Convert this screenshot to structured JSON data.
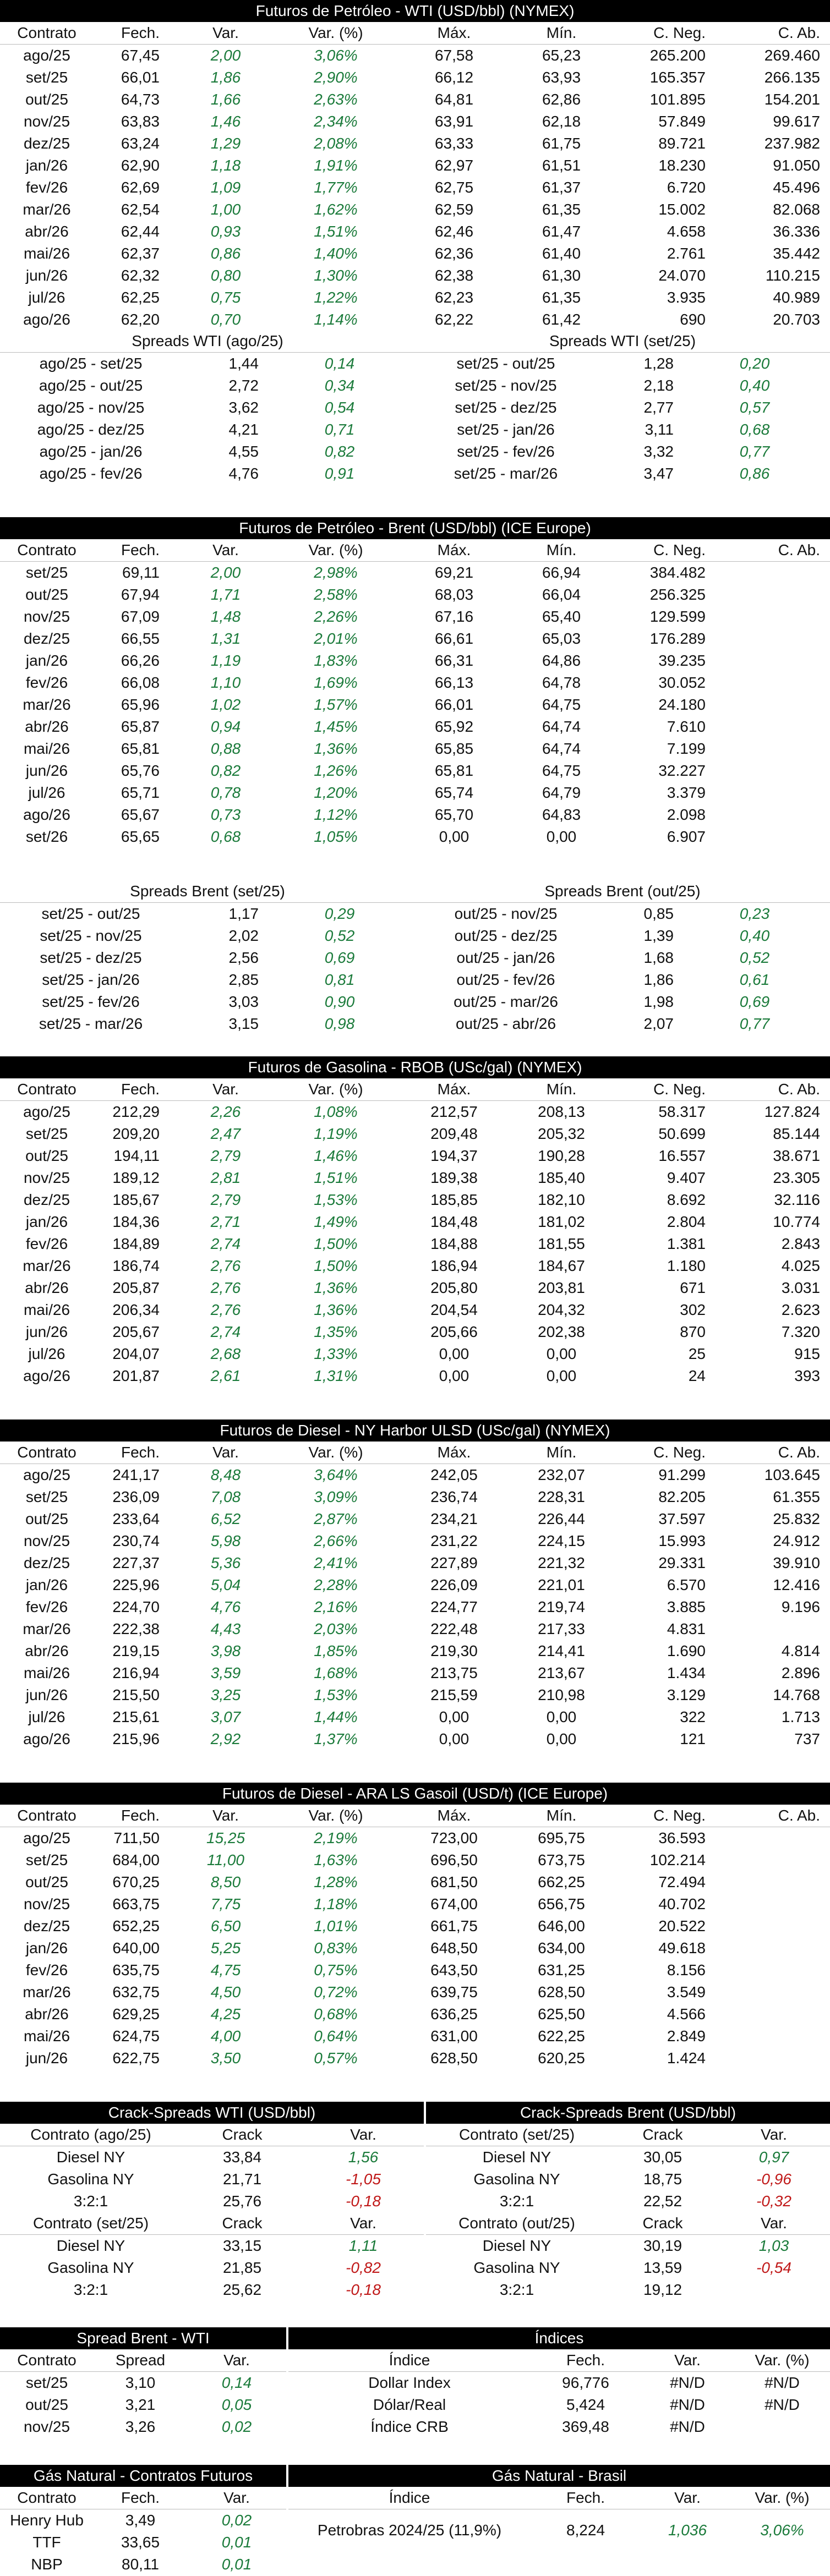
{
  "colors": {
    "positive": "#1a7a3a",
    "negative": "#c01818",
    "header_bg": "#000000"
  },
  "wti": {
    "title": "Futuros de Petróleo - WTI (USD/bbl) (NYMEX)",
    "headers": [
      "Contrato",
      "Fech.",
      "Var.",
      "Var. (%)",
      "Máx.",
      "Mín.",
      "C. Neg.",
      "C. Ab."
    ],
    "rows": [
      [
        "ago/25",
        "67,45",
        "2,00",
        "3,06%",
        "67,58",
        "65,23",
        "265.200",
        "269.460"
      ],
      [
        "set/25",
        "66,01",
        "1,86",
        "2,90%",
        "66,12",
        "63,93",
        "165.357",
        "266.135"
      ],
      [
        "out/25",
        "64,73",
        "1,66",
        "2,63%",
        "64,81",
        "62,86",
        "101.895",
        "154.201"
      ],
      [
        "nov/25",
        "63,83",
        "1,46",
        "2,34%",
        "63,91",
        "62,18",
        "57.849",
        "99.617"
      ],
      [
        "dez/25",
        "63,24",
        "1,29",
        "2,08%",
        "63,33",
        "61,75",
        "89.721",
        "237.982"
      ],
      [
        "jan/26",
        "62,90",
        "1,18",
        "1,91%",
        "62,97",
        "61,51",
        "18.230",
        "91.050"
      ],
      [
        "fev/26",
        "62,69",
        "1,09",
        "1,77%",
        "62,75",
        "61,37",
        "6.720",
        "45.496"
      ],
      [
        "mar/26",
        "62,54",
        "1,00",
        "1,62%",
        "62,59",
        "61,35",
        "15.002",
        "82.068"
      ],
      [
        "abr/26",
        "62,44",
        "0,93",
        "1,51%",
        "62,46",
        "61,47",
        "4.658",
        "36.336"
      ],
      [
        "mai/26",
        "62,37",
        "0,86",
        "1,40%",
        "62,36",
        "61,40",
        "2.761",
        "35.442"
      ],
      [
        "jun/26",
        "62,32",
        "0,80",
        "1,30%",
        "62,38",
        "61,30",
        "24.070",
        "110.215"
      ],
      [
        "jul/26",
        "62,25",
        "0,75",
        "1,22%",
        "62,23",
        "61,35",
        "3.935",
        "40.989"
      ],
      [
        "ago/26",
        "62,20",
        "0,70",
        "1,14%",
        "62,22",
        "61,42",
        "690",
        "20.703"
      ]
    ],
    "spreads_left_title": "Spreads WTI (ago/25)",
    "spreads_left": [
      [
        "ago/25 - set/25",
        "1,44",
        "0,14"
      ],
      [
        "ago/25 - out/25",
        "2,72",
        "0,34"
      ],
      [
        "ago/25 - nov/25",
        "3,62",
        "0,54"
      ],
      [
        "ago/25 - dez/25",
        "4,21",
        "0,71"
      ],
      [
        "ago/25 - jan/26",
        "4,55",
        "0,82"
      ],
      [
        "ago/25 - fev/26",
        "4,76",
        "0,91"
      ]
    ],
    "spreads_right_title": "Spreads WTI (set/25)",
    "spreads_right": [
      [
        "set/25 - out/25",
        "1,28",
        "0,20"
      ],
      [
        "set/25 - nov/25",
        "2,18",
        "0,40"
      ],
      [
        "set/25 - dez/25",
        "2,77",
        "0,57"
      ],
      [
        "set/25 - jan/26",
        "3,11",
        "0,68"
      ],
      [
        "set/25 - fev/26",
        "3,32",
        "0,77"
      ],
      [
        "set/25 - mar/26",
        "3,47",
        "0,86"
      ]
    ]
  },
  "brent": {
    "title": "Futuros de Petróleo - Brent (USD/bbl) (ICE Europe)",
    "headers": [
      "Contrato",
      "Fech.",
      "Var.",
      "Var. (%)",
      "Máx.",
      "Mín.",
      "C. Neg.",
      "C. Ab."
    ],
    "rows": [
      [
        "set/25",
        "69,11",
        "2,00",
        "2,98%",
        "69,21",
        "66,94",
        "384.482",
        ""
      ],
      [
        "out/25",
        "67,94",
        "1,71",
        "2,58%",
        "68,03",
        "66,04",
        "256.325",
        ""
      ],
      [
        "nov/25",
        "67,09",
        "1,48",
        "2,26%",
        "67,16",
        "65,40",
        "129.599",
        ""
      ],
      [
        "dez/25",
        "66,55",
        "1,31",
        "2,01%",
        "66,61",
        "65,03",
        "176.289",
        ""
      ],
      [
        "jan/26",
        "66,26",
        "1,19",
        "1,83%",
        "66,31",
        "64,86",
        "39.235",
        ""
      ],
      [
        "fev/26",
        "66,08",
        "1,10",
        "1,69%",
        "66,13",
        "64,78",
        "30.052",
        ""
      ],
      [
        "mar/26",
        "65,96",
        "1,02",
        "1,57%",
        "66,01",
        "64,75",
        "24.180",
        ""
      ],
      [
        "abr/26",
        "65,87",
        "0,94",
        "1,45%",
        "65,92",
        "64,74",
        "7.610",
        ""
      ],
      [
        "mai/26",
        "65,81",
        "0,88",
        "1,36%",
        "65,85",
        "64,74",
        "7.199",
        ""
      ],
      [
        "jun/26",
        "65,76",
        "0,82",
        "1,26%",
        "65,81",
        "64,75",
        "32.227",
        ""
      ],
      [
        "jul/26",
        "65,71",
        "0,78",
        "1,20%",
        "65,74",
        "64,79",
        "3.379",
        ""
      ],
      [
        "ago/26",
        "65,67",
        "0,73",
        "1,12%",
        "65,70",
        "64,83",
        "2.098",
        ""
      ],
      [
        "set/26",
        "65,65",
        "0,68",
        "1,05%",
        "0,00",
        "0,00",
        "6.907",
        ""
      ]
    ],
    "spreads_left_title": "Spreads Brent (set/25)",
    "spreads_left": [
      [
        "set/25 - out/25",
        "1,17",
        "0,29"
      ],
      [
        "set/25 - nov/25",
        "2,02",
        "0,52"
      ],
      [
        "set/25 - dez/25",
        "2,56",
        "0,69"
      ],
      [
        "set/25 - jan/26",
        "2,85",
        "0,81"
      ],
      [
        "set/25 - fev/26",
        "3,03",
        "0,90"
      ],
      [
        "set/25 - mar/26",
        "3,15",
        "0,98"
      ]
    ],
    "spreads_right_title": "Spreads Brent (out/25)",
    "spreads_right": [
      [
        "out/25 - nov/25",
        "0,85",
        "0,23"
      ],
      [
        "out/25 - dez/25",
        "1,39",
        "0,40"
      ],
      [
        "out/25 - jan/26",
        "1,68",
        "0,52"
      ],
      [
        "out/25 - fev/26",
        "1,86",
        "0,61"
      ],
      [
        "out/25 - mar/26",
        "1,98",
        "0,69"
      ],
      [
        "out/25 - abr/26",
        "2,07",
        "0,77"
      ]
    ]
  },
  "rbob": {
    "title": "Futuros de Gasolina - RBOB (USc/gal) (NYMEX)",
    "headers": [
      "Contrato",
      "Fech.",
      "Var.",
      "Var. (%)",
      "Máx.",
      "Mín.",
      "C. Neg.",
      "C. Ab."
    ],
    "rows": [
      [
        "ago/25",
        "212,29",
        "2,26",
        "1,08%",
        "212,57",
        "208,13",
        "58.317",
        "127.824"
      ],
      [
        "set/25",
        "209,20",
        "2,47",
        "1,19%",
        "209,48",
        "205,32",
        "50.699",
        "85.144"
      ],
      [
        "out/25",
        "194,11",
        "2,79",
        "1,46%",
        "194,37",
        "190,28",
        "16.557",
        "38.671"
      ],
      [
        "nov/25",
        "189,12",
        "2,81",
        "1,51%",
        "189,38",
        "185,40",
        "9.407",
        "23.305"
      ],
      [
        "dez/25",
        "185,67",
        "2,79",
        "1,53%",
        "185,85",
        "182,10",
        "8.692",
        "32.116"
      ],
      [
        "jan/26",
        "184,36",
        "2,71",
        "1,49%",
        "184,48",
        "181,02",
        "2.804",
        "10.774"
      ],
      [
        "fev/26",
        "184,89",
        "2,74",
        "1,50%",
        "184,88",
        "181,55",
        "1.381",
        "2.843"
      ],
      [
        "mar/26",
        "186,74",
        "2,76",
        "1,50%",
        "186,94",
        "184,67",
        "1.180",
        "4.025"
      ],
      [
        "abr/26",
        "205,87",
        "2,76",
        "1,36%",
        "205,80",
        "203,81",
        "671",
        "3.031"
      ],
      [
        "mai/26",
        "206,34",
        "2,76",
        "1,36%",
        "204,54",
        "204,32",
        "302",
        "2.623"
      ],
      [
        "jun/26",
        "205,67",
        "2,74",
        "1,35%",
        "205,66",
        "202,38",
        "870",
        "7.320"
      ],
      [
        "jul/26",
        "204,07",
        "2,68",
        "1,33%",
        "0,00",
        "0,00",
        "25",
        "915"
      ],
      [
        "ago/26",
        "201,87",
        "2,61",
        "1,31%",
        "0,00",
        "0,00",
        "24",
        "393"
      ]
    ]
  },
  "ulsd": {
    "title": "Futuros de Diesel - NY Harbor ULSD (USc/gal) (NYMEX)",
    "headers": [
      "Contrato",
      "Fech.",
      "Var.",
      "Var. (%)",
      "Máx.",
      "Mín.",
      "C. Neg.",
      "C. Ab."
    ],
    "rows": [
      [
        "ago/25",
        "241,17",
        "8,48",
        "3,64%",
        "242,05",
        "232,07",
        "91.299",
        "103.645"
      ],
      [
        "set/25",
        "236,09",
        "7,08",
        "3,09%",
        "236,74",
        "228,31",
        "82.205",
        "61.355"
      ],
      [
        "out/25",
        "233,64",
        "6,52",
        "2,87%",
        "234,21",
        "226,44",
        "37.597",
        "25.832"
      ],
      [
        "nov/25",
        "230,74",
        "5,98",
        "2,66%",
        "231,22",
        "224,15",
        "15.993",
        "24.912"
      ],
      [
        "dez/25",
        "227,37",
        "5,36",
        "2,41%",
        "227,89",
        "221,32",
        "29.331",
        "39.910"
      ],
      [
        "jan/26",
        "225,96",
        "5,04",
        "2,28%",
        "226,09",
        "221,01",
        "6.570",
        "12.416"
      ],
      [
        "fev/26",
        "224,70",
        "4,76",
        "2,16%",
        "224,77",
        "219,74",
        "3.885",
        "9.196"
      ],
      [
        "mar/26",
        "222,38",
        "4,43",
        "2,03%",
        "222,48",
        "217,33",
        "4.831",
        ""
      ],
      [
        "abr/26",
        "219,15",
        "3,98",
        "1,85%",
        "219,30",
        "214,41",
        "1.690",
        "4.814"
      ],
      [
        "mai/26",
        "216,94",
        "3,59",
        "1,68%",
        "213,75",
        "213,67",
        "1.434",
        "2.896"
      ],
      [
        "jun/26",
        "215,50",
        "3,25",
        "1,53%",
        "215,59",
        "210,98",
        "3.129",
        "14.768"
      ],
      [
        "jul/26",
        "215,61",
        "3,07",
        "1,44%",
        "0,00",
        "0,00",
        "322",
        "1.713"
      ],
      [
        "ago/26",
        "215,96",
        "2,92",
        "1,37%",
        "0,00",
        "0,00",
        "121",
        "737"
      ]
    ]
  },
  "gasoil": {
    "title": "Futuros de Diesel - ARA LS Gasoil (USD/t) (ICE Europe)",
    "headers": [
      "Contrato",
      "Fech.",
      "Var.",
      "Var. (%)",
      "Máx.",
      "Mín.",
      "C. Neg.",
      "C. Ab."
    ],
    "rows": [
      [
        "ago/25",
        "711,50",
        "15,25",
        "2,19%",
        "723,00",
        "695,75",
        "36.593",
        ""
      ],
      [
        "set/25",
        "684,00",
        "11,00",
        "1,63%",
        "696,50",
        "673,75",
        "102.214",
        ""
      ],
      [
        "out/25",
        "670,25",
        "8,50",
        "1,28%",
        "681,50",
        "662,25",
        "72.494",
        ""
      ],
      [
        "nov/25",
        "663,75",
        "7,75",
        "1,18%",
        "674,00",
        "656,75",
        "40.702",
        ""
      ],
      [
        "dez/25",
        "652,25",
        "6,50",
        "1,01%",
        "661,75",
        "646,00",
        "20.522",
        ""
      ],
      [
        "jan/26",
        "640,00",
        "5,25",
        "0,83%",
        "648,50",
        "634,00",
        "49.618",
        ""
      ],
      [
        "fev/26",
        "635,75",
        "4,75",
        "0,75%",
        "643,50",
        "631,25",
        "8.156",
        ""
      ],
      [
        "mar/26",
        "632,75",
        "4,50",
        "0,72%",
        "639,75",
        "628,50",
        "3.549",
        ""
      ],
      [
        "abr/26",
        "629,25",
        "4,25",
        "0,68%",
        "636,25",
        "625,50",
        "4.566",
        ""
      ],
      [
        "mai/26",
        "624,75",
        "4,00",
        "0,64%",
        "631,00",
        "622,25",
        "2.849",
        ""
      ],
      [
        "jun/26",
        "622,75",
        "3,50",
        "0,57%",
        "628,50",
        "620,25",
        "1.424",
        ""
      ]
    ]
  },
  "crack_wti": {
    "title": "Crack-Spreads WTI (USD/bbl)",
    "blocks": [
      {
        "headers": [
          "Contrato (ago/25)",
          "Crack",
          "Var."
        ],
        "rows": [
          [
            "Diesel NY",
            "33,84",
            "1,56"
          ],
          [
            "Gasolina NY",
            "21,71",
            "-1,05"
          ],
          [
            "3:2:1",
            "25,76",
            "-0,18"
          ]
        ]
      },
      {
        "headers": [
          "Contrato (set/25)",
          "Crack",
          "Var."
        ],
        "rows": [
          [
            "Diesel NY",
            "33,15",
            "1,11"
          ],
          [
            "Gasolina NY",
            "21,85",
            "-0,82"
          ],
          [
            "3:2:1",
            "25,62",
            "-0,18"
          ]
        ]
      }
    ]
  },
  "crack_brent": {
    "title": "Crack-Spreads Brent (USD/bbl)",
    "blocks": [
      {
        "headers": [
          "Contrato (set/25)",
          "Crack",
          "Var."
        ],
        "rows": [
          [
            "Diesel NY",
            "30,05",
            "0,97"
          ],
          [
            "Gasolina NY",
            "18,75",
            "-0,96"
          ],
          [
            "3:2:1",
            "22,52",
            "-0,32"
          ]
        ]
      },
      {
        "headers": [
          "Contrato (out/25)",
          "Crack",
          "Var."
        ],
        "rows": [
          [
            "Diesel NY",
            "30,19",
            "1,03"
          ],
          [
            "Gasolina NY",
            "13,59",
            "-0,54"
          ],
          [
            "3:2:1",
            "19,12",
            ""
          ]
        ]
      }
    ]
  },
  "spread_bw": {
    "title": "Spread Brent - WTI",
    "headers": [
      "Contrato",
      "Spread",
      "Var."
    ],
    "rows": [
      [
        "set/25",
        "3,10",
        "0,14"
      ],
      [
        "out/25",
        "3,21",
        "0,05"
      ],
      [
        "nov/25",
        "3,26",
        "0,02"
      ]
    ]
  },
  "indices": {
    "title": "Índices",
    "headers": [
      "Índice",
      "Fech.",
      "Var.",
      "Var. (%)"
    ],
    "rows": [
      [
        "Dollar Index",
        "96,776",
        "#N/D",
        "#N/D"
      ],
      [
        "Dólar/Real",
        "5,424",
        "#N/D",
        "#N/D"
      ],
      [
        "Índice CRB",
        "369,48",
        "#N/D",
        ""
      ]
    ]
  },
  "gas_futures": {
    "title": "Gás Natural - Contratos Futuros",
    "headers": [
      "Contrato",
      "Fech.",
      "Var."
    ],
    "rows": [
      [
        "Henry Hub",
        "3,49",
        "0,02"
      ],
      [
        "TTF",
        "33,65",
        "0,01"
      ],
      [
        "NBP",
        "80,11",
        "0,01"
      ]
    ]
  },
  "gas_brasil": {
    "title": "Gás Natural - Brasil",
    "headers": [
      "Índice",
      "Fech.",
      "Var.",
      "Var. (%)"
    ],
    "rows": [
      [
        "Petrobras 2024/25 (11,9%)",
        "8,224",
        "1,036",
        "3,06%"
      ]
    ]
  }
}
